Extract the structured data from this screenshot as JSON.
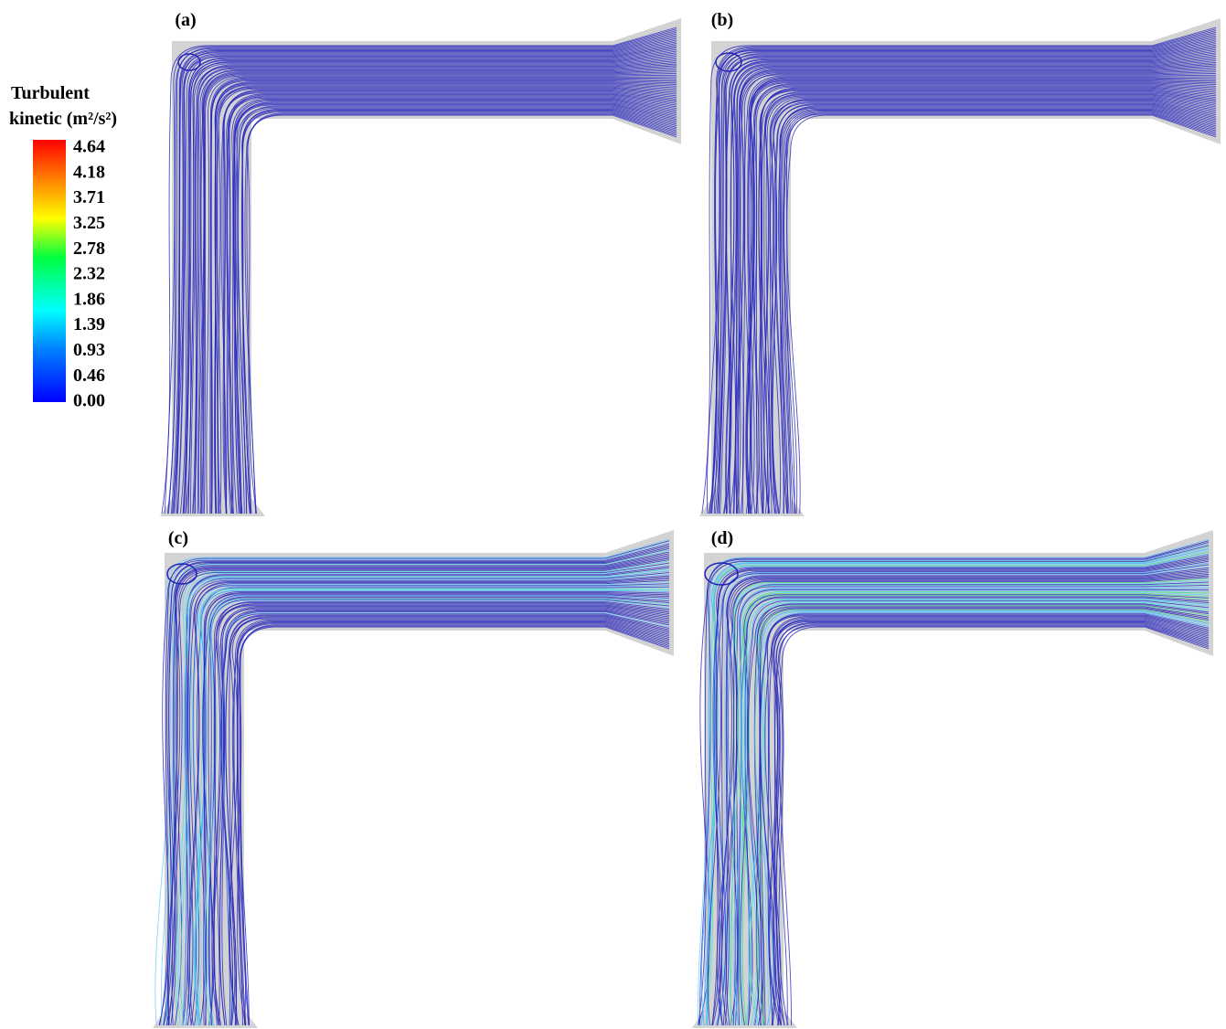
{
  "legend": {
    "title": [
      "Turbulent",
      "kinetic (m²/s²)"
    ],
    "labels": [
      "4.64",
      "4.18",
      "3.71",
      "3.25",
      "2.78",
      "2.32",
      "1.86",
      "1.39",
      "0.93",
      "0.46",
      "0.00"
    ]
  },
  "panels": [
    {
      "label": "(a)"
    },
    {
      "label": "(b)"
    },
    {
      "label": "(c)"
    },
    {
      "label": "(d)"
    }
  ]
}
